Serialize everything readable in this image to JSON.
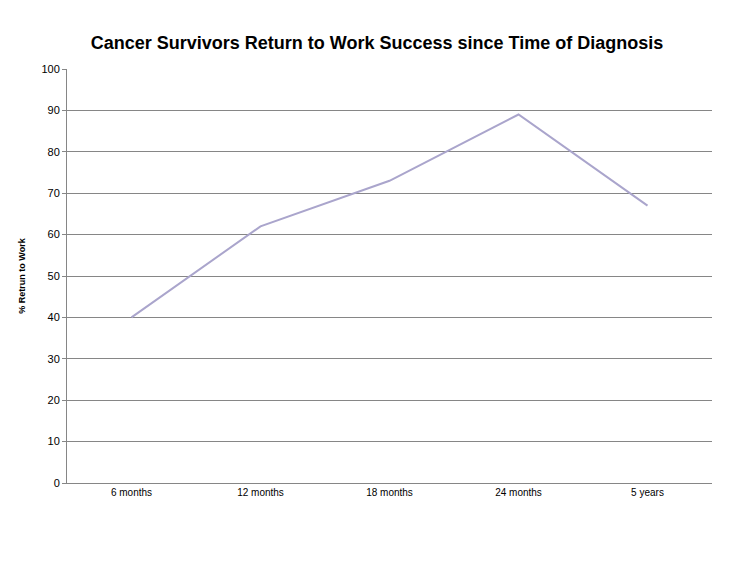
{
  "chart_data": {
    "type": "line",
    "title": "Cancer Survivors Return to Work Success since Time of Diagnosis",
    "y_label": "% Retrun to Work",
    "categories": [
      "6 months",
      "12 months",
      "18 months",
      "24 months",
      "5 years"
    ],
    "values": [
      40,
      62,
      73,
      89,
      67
    ],
    "color": "#aaa5cc",
    "ylim": [
      0,
      100
    ],
    "yticks": [
      0,
      10,
      20,
      30,
      40,
      50,
      60,
      70,
      80,
      90,
      100
    ],
    "grid": true
  }
}
